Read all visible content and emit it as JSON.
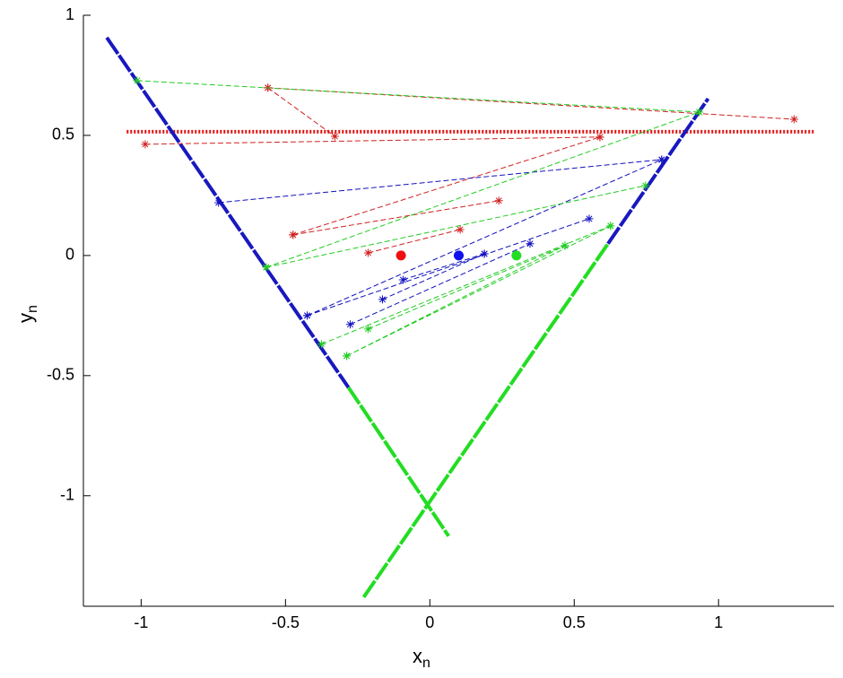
{
  "chart_data": {
    "type": "line",
    "xlabel": "x",
    "xlabel_subscript": "n",
    "ylabel": "y",
    "ylabel_subscript": "n",
    "xlim": [
      -1.2,
      1.4
    ],
    "ylim": [
      -1.46,
      1
    ],
    "xticks": [
      -1,
      -0.5,
      0,
      0.5,
      1
    ],
    "yticks": [
      -1,
      -0.5,
      0,
      0.5,
      1
    ],
    "series": [
      {
        "style": "dotted-thick",
        "color": "#e01010",
        "x": [
          -1.05,
          1.33
        ],
        "values": [
          0.515,
          0.515
        ]
      },
      {
        "style": "solid-thick",
        "color": "#1818c0",
        "x": [
          -1.119,
          -0.282,
          null,
          0.617,
          0.964
        ],
        "values": [
          0.907,
          -0.549,
          null,
          0.049,
          0.653
        ]
      },
      {
        "style": "solid-thick",
        "color": "#22dd22",
        "x": [
          -0.282,
          0.065,
          null,
          -0.229,
          0.617
        ],
        "values": [
          -0.549,
          -1.168,
          null,
          -1.422,
          0.049
        ]
      },
      {
        "style": "dashed-star",
        "color": "#d02020",
        "x": [
          -0.561,
          -0.329,
          null,
          -0.561,
          1.262,
          null,
          -0.986,
          0.589,
          null,
          -0.474,
          0.589,
          null,
          -0.474,
          0.239,
          null,
          -0.214,
          0.105
        ],
        "values": [
          0.698,
          0.496,
          null,
          0.698,
          0.567,
          null,
          0.463,
          0.493,
          null,
          0.086,
          0.493,
          null,
          0.086,
          0.228,
          null,
          0.011,
          0.108
        ]
      },
      {
        "style": "dashed-star",
        "color": "#1010c0",
        "x": [
          -0.732,
          0.803,
          null,
          -0.425,
          0.803,
          null,
          -0.425,
          0.552,
          null,
          -0.164,
          0.189,
          null,
          -0.276,
          0.347,
          null,
          -0.093,
          0.189
        ],
        "values": [
          0.22,
          0.399,
          null,
          -0.25,
          0.399,
          null,
          -0.25,
          0.153,
          null,
          -0.183,
          0.007,
          null,
          -0.287,
          0.049,
          null,
          -0.101,
          0.007
        ]
      },
      {
        "style": "dashed-star",
        "color": "#22cc22",
        "x": [
          -1.014,
          0.933,
          null,
          -0.567,
          0.933,
          null,
          -0.567,
          0.747,
          null,
          -0.375,
          0.626,
          null,
          -0.214,
          0.468,
          null,
          -0.288,
          0.626,
          null,
          -0.288,
          0.468
        ],
        "values": [
          0.728,
          0.597,
          null,
          -0.049,
          0.597,
          null,
          -0.049,
          0.291,
          null,
          -0.369,
          0.123,
          null,
          -0.306,
          0.041,
          null,
          -0.418,
          0.123,
          null,
          -0.418,
          0.041
        ]
      },
      {
        "style": "dot",
        "color": "#ee1010",
        "x": [
          -0.1
        ],
        "values": [
          0
        ]
      },
      {
        "style": "dot",
        "color": "#1010ee",
        "x": [
          0.1
        ],
        "values": [
          0
        ]
      },
      {
        "style": "dot",
        "color": "#22dd22",
        "x": [
          0.3
        ],
        "values": [
          0
        ]
      }
    ]
  }
}
